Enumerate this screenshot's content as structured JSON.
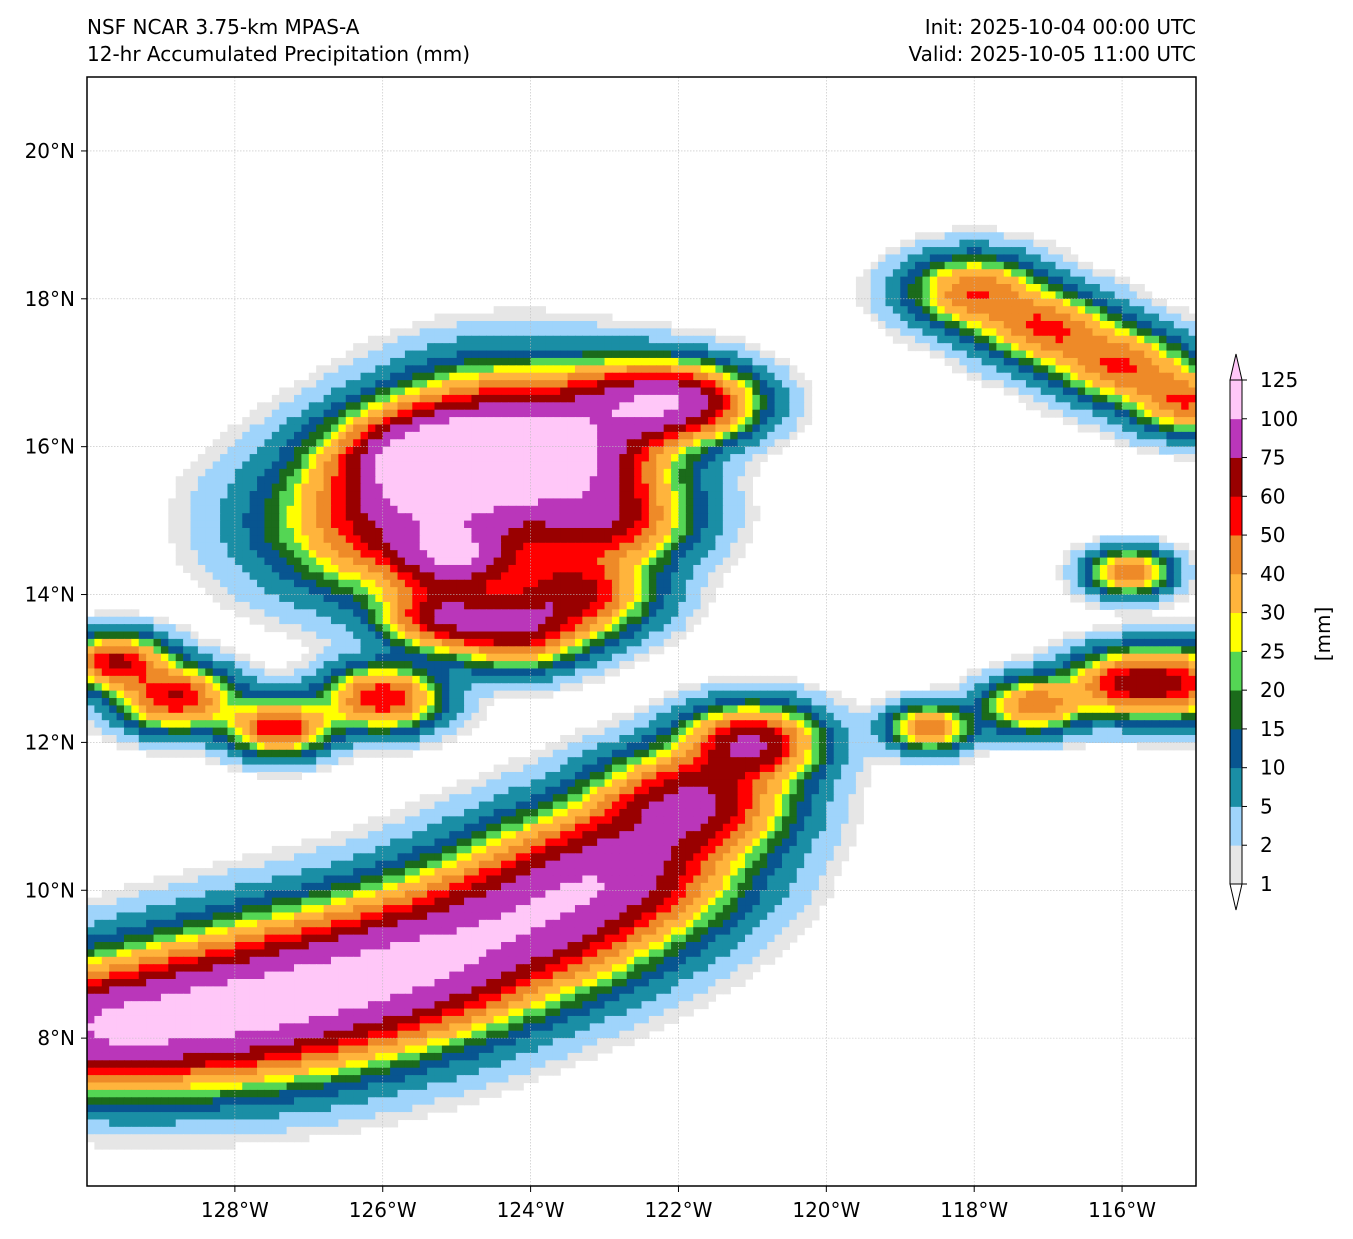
{
  "header": {
    "model": "NSF NCAR 3.75-km MPAS-A",
    "product": "12-hr Accumulated Precipitation (mm)",
    "init": "Init: 2025-10-04 00:00 UTC",
    "valid": "Valid: 2025-10-05 11:00 UTC"
  },
  "map": {
    "lon_range": [
      -130,
      -115
    ],
    "lat_range": [
      6,
      21
    ],
    "lon_ticks": [
      {
        "value": -128,
        "label": "128°W"
      },
      {
        "value": -126,
        "label": "126°W"
      },
      {
        "value": -124,
        "label": "124°W"
      },
      {
        "value": -122,
        "label": "122°W"
      },
      {
        "value": -120,
        "label": "120°W"
      },
      {
        "value": -118,
        "label": "118°W"
      },
      {
        "value": -116,
        "label": "116°W"
      }
    ],
    "lat_ticks": [
      {
        "value": 8,
        "label": "8°N"
      },
      {
        "value": 10,
        "label": "10°N"
      },
      {
        "value": 12,
        "label": "12°N"
      },
      {
        "value": 14,
        "label": "14°N"
      },
      {
        "value": 16,
        "label": "16°N"
      },
      {
        "value": 18,
        "label": "18°N"
      },
      {
        "value": 20,
        "label": "20°N"
      }
    ],
    "gridlines": true
  },
  "colorbar": {
    "unit_label": "[mm]",
    "extend": "both",
    "levels": [
      "1",
      "2",
      "5",
      "10",
      "15",
      "20",
      "25",
      "30",
      "40",
      "50",
      "60",
      "75",
      "100",
      "125"
    ],
    "colors": [
      "#e6e6e6",
      "#9fd4fb",
      "#1a8ea5",
      "#085590",
      "#1b6b1b",
      "#54d654",
      "#ffff00",
      "#ffb43c",
      "#ee8a28",
      "#ff0000",
      "#990000",
      "#ba36ba",
      "#ffc7f8"
    ],
    "under_color": "#ffffff",
    "over_color": "#ffc7f8"
  },
  "features": [
    {
      "name": "tropical-cyclone",
      "points": [
        [
          -125.6,
          15.0,
          12,
          1.6
        ],
        [
          -124.8,
          15.7,
          10,
          1.3
        ],
        [
          -125.5,
          15.9,
          10,
          1.0
        ],
        [
          -124.2,
          16.3,
          10,
          1.4
        ],
        [
          -123.4,
          15.8,
          10,
          1.1
        ],
        [
          -123.0,
          15.0,
          10,
          1.0
        ],
        [
          -123.4,
          14.0,
          10,
          0.9
        ],
        [
          -124.2,
          13.5,
          10,
          0.8
        ],
        [
          -125.2,
          13.7,
          10,
          0.7
        ],
        [
          -122.6,
          16.6,
          10,
          0.9
        ],
        [
          -121.8,
          16.6,
          10,
          0.8
        ],
        [
          -125.0,
          14.5,
          10,
          0.7
        ],
        [
          -126.0,
          12.6,
          10,
          0.7
        ],
        [
          -127.4,
          12.2,
          10,
          0.6
        ],
        [
          -128.8,
          12.6,
          10,
          0.7
        ],
        [
          -129.6,
          13.1,
          10,
          0.6
        ]
      ]
    },
    {
      "name": "itcz-band",
      "points": [
        [
          -130.0,
          8.1,
          12,
          1.3
        ],
        [
          -128.5,
          8.3,
          12,
          1.5
        ],
        [
          -127.0,
          8.6,
          12,
          1.6
        ],
        [
          -125.5,
          9.0,
          12,
          1.5
        ],
        [
          -124.0,
          9.6,
          12,
          1.5
        ],
        [
          -122.8,
          10.3,
          12,
          1.4
        ],
        [
          -121.8,
          11.2,
          12,
          1.1
        ],
        [
          -121.0,
          12.0,
          12,
          0.8
        ]
      ]
    },
    {
      "name": "northeast-band",
      "points": [
        [
          -118.0,
          18.1,
          8,
          0.8
        ],
        [
          -117.0,
          17.6,
          8,
          0.8
        ],
        [
          -116.0,
          17.1,
          8,
          0.8
        ],
        [
          -115.1,
          16.6,
          8,
          0.7
        ]
      ]
    },
    {
      "name": "east-band",
      "points": [
        [
          -118.6,
          12.2,
          8,
          0.5
        ],
        [
          -117.2,
          12.5,
          8,
          0.6
        ],
        [
          -116.0,
          12.8,
          8,
          0.7
        ],
        [
          -115.2,
          12.8,
          8,
          0.8
        ],
        [
          -115.9,
          14.3,
          8,
          0.5
        ]
      ]
    }
  ]
}
